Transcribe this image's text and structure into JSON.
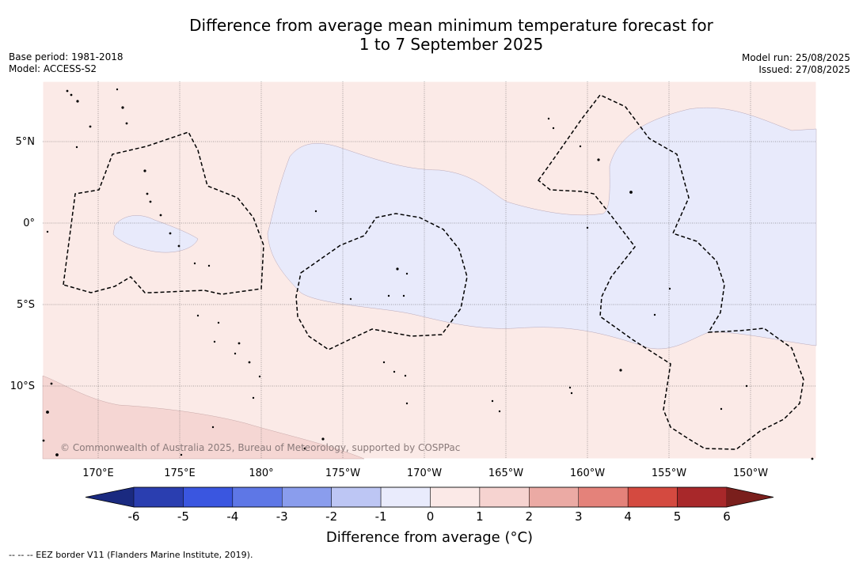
{
  "title_line1": "Difference from average mean minimum temperature forecast for",
  "title_line2": "1 to 7 September 2025",
  "base_period": "Base period: 1981-2018",
  "model": "Model: ACCESS-S2",
  "model_run": "Model run: 25/08/2025",
  "issued": "Issued: 27/08/2025",
  "lat_labels": [
    "5°N",
    "0°",
    "5°S",
    "10°S"
  ],
  "lon_labels": [
    "170°E",
    "175°E",
    "180°",
    "175°W",
    "170°W",
    "165°W",
    "160°W",
    "155°W",
    "150°W"
  ],
  "copyright": "© Commonwealth of Australia 2025, Bureau of Meteorology, supported by COSPPac",
  "colorbar": {
    "ticks": [
      "-6",
      "-5",
      "-4",
      "-3",
      "-2",
      "-1",
      "0",
      "1",
      "2",
      "3",
      "4",
      "5",
      "6"
    ],
    "title": "Difference from average (°C)",
    "colors": [
      "#1a2a80",
      "#2a3eb0",
      "#3a56e0",
      "#5e77e6",
      "#8a9ded",
      "#bdc6f4",
      "#e9ebfc",
      "#fbe9e7",
      "#f6d3d0",
      "#ebaaa4",
      "#e4827a",
      "#d44a40",
      "#a8282a",
      "#7a1f1c"
    ]
  },
  "map_colors": {
    "neutral_warm": "#fbeae7",
    "cool": "#e8eafb",
    "warm": "#f5d6d3"
  },
  "footer": "--  --  -- EEZ border V11 (Flanders Marine Institute, 2019)."
}
